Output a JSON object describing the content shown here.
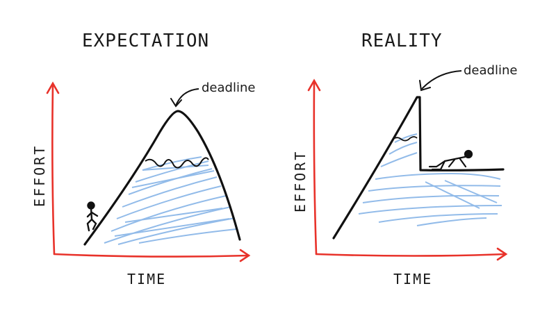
{
  "left_panel": {
    "title": "EXPECTATION",
    "x_label": "TIME",
    "y_label": "EFFORT",
    "annotation": "deadline"
  },
  "right_panel": {
    "title": "REALITY",
    "x_label": "TIME",
    "y_label": "EFFORT",
    "annotation": "deadline"
  },
  "colors": {
    "axis": "#e8322a",
    "ink": "#111111",
    "hatch": "#7fb0e6"
  }
}
